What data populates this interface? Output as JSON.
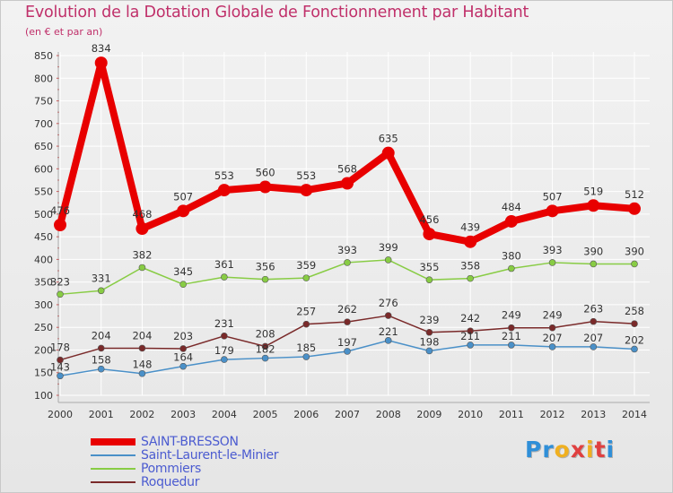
{
  "header": {
    "title": "Evolution de la Dotation Globale de Fonctionnement par Habitant",
    "subtitle": "(en € et par an)"
  },
  "logo": {
    "text": "Proxiti",
    "letters": [
      "P",
      "r",
      "o",
      "x",
      "i",
      "t",
      "i"
    ],
    "colors": [
      "#2f8fd8",
      "#2f8fd8",
      "#f0b020",
      "#e04040",
      "#f0b020",
      "#e04040",
      "#2f8fd8"
    ]
  },
  "chart_data": {
    "type": "line",
    "title": "Evolution de la Dotation Globale de Fonctionnement par Habitant",
    "ylabel": "(en € et par an)",
    "xlabel": "",
    "x": [
      "2000",
      "2001",
      "2002",
      "2003",
      "2004",
      "2005",
      "2006",
      "2007",
      "2008",
      "2009",
      "2010",
      "2011",
      "2012",
      "2013",
      "2014"
    ],
    "ylim": [
      100,
      850
    ],
    "yticks": [
      100,
      150,
      200,
      250,
      300,
      350,
      400,
      450,
      500,
      550,
      600,
      650,
      700,
      750,
      800,
      850
    ],
    "grid": true,
    "legend_position": "bottom-left",
    "series": [
      {
        "name": "SAINT-BRESSON",
        "color": "#e80000",
        "bold": true,
        "values": [
          476,
          834,
          468,
          507,
          553,
          560,
          553,
          568,
          635,
          456,
          439,
          484,
          507,
          519,
          512
        ],
        "labels": [
          "476",
          "834",
          "468",
          "507",
          "553",
          "560",
          "553",
          "568",
          "635",
          "456",
          "439",
          "484",
          "507",
          "519",
          "512"
        ]
      },
      {
        "name": "Saint-Laurent-le-Minier",
        "color": "#4a90c8",
        "bold": false,
        "values": [
          143,
          158,
          148,
          164,
          179,
          182,
          185,
          197,
          221,
          198,
          211,
          211,
          207,
          207,
          202
        ],
        "labels": [
          "143",
          "158",
          "148",
          "164",
          "179",
          "182",
          "185",
          "197",
          "221",
          "198",
          "211",
          "211",
          "207",
          "207",
          "202"
        ]
      },
      {
        "name": "Pommiers",
        "color": "#88cc44",
        "bold": false,
        "values": [
          323,
          331,
          382,
          345,
          361,
          356,
          359,
          393,
          399,
          355,
          358,
          380,
          393,
          390,
          390
        ],
        "labels": [
          "323",
          "331",
          "382",
          "345",
          "361",
          "356",
          "359",
          "393",
          "399",
          "355",
          "358",
          "380",
          "393",
          "390",
          "390"
        ]
      },
      {
        "name": "Roquedur",
        "color": "#7a2a2a",
        "bold": false,
        "values": [
          178,
          204,
          204,
          203,
          231,
          208,
          257,
          262,
          276,
          239,
          242,
          249,
          249,
          263,
          258
        ],
        "labels": [
          "178",
          "204",
          "204",
          "203",
          "231",
          "208",
          "257",
          "262",
          "276",
          "239",
          "242",
          "249",
          "249",
          "263",
          "258"
        ]
      }
    ]
  }
}
